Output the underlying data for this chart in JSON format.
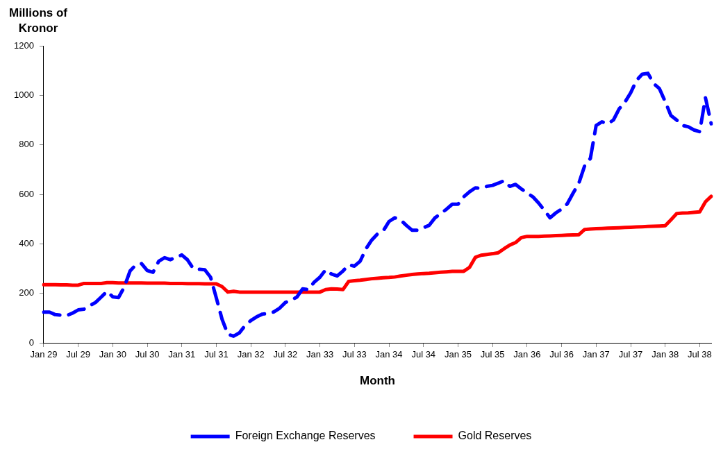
{
  "chart_data": {
    "type": "line",
    "ylabel": "Millions of Kronor",
    "xlabel": "Month",
    "categories": [
      "Jan 29",
      null,
      null,
      null,
      null,
      null,
      "Jul 29",
      null,
      null,
      null,
      null,
      null,
      "Jan 30",
      null,
      null,
      null,
      null,
      null,
      "Jul 30",
      null,
      null,
      null,
      null,
      null,
      "Jan 31",
      null,
      null,
      null,
      null,
      null,
      "Jul 31",
      null,
      null,
      null,
      null,
      null,
      "Jan 32",
      null,
      null,
      null,
      null,
      null,
      "Jul 32",
      null,
      null,
      null,
      null,
      null,
      "Jan 33",
      null,
      null,
      null,
      null,
      null,
      "Jul 33",
      null,
      null,
      null,
      null,
      null,
      "Jan 34",
      null,
      null,
      null,
      null,
      null,
      "Jul 34",
      null,
      null,
      null,
      null,
      null,
      "Jan 35",
      null,
      null,
      null,
      null,
      null,
      "Jul 35",
      null,
      null,
      null,
      null,
      null,
      "Jan 36",
      null,
      null,
      null,
      null,
      null,
      "Jul 36",
      null,
      null,
      null,
      null,
      null,
      "Jan 37",
      null,
      null,
      null,
      null,
      null,
      "Jul 37",
      null,
      null,
      null,
      null,
      null,
      "Jan 38",
      null,
      null,
      null,
      null,
      null,
      "Jul 38",
      null,
      null
    ],
    "series": [
      {
        "name": "Foreign Exchange Reserves",
        "color": "#0000ff",
        "line_style": "dashed",
        "values": [
          124,
          124,
          114,
          112,
          110,
          120,
          133,
          136,
          150,
          163,
          185,
          208,
          186,
          183,
          225,
          290,
          315,
          320,
          292,
          285,
          330,
          344,
          336,
          345,
          355,
          335,
          300,
          297,
          295,
          265,
          181,
          95,
          35,
          27,
          40,
          70,
          90,
          105,
          116,
          118,
          125,
          140,
          163,
          172,
          185,
          218,
          215,
          245,
          265,
          295,
          278,
          270,
          290,
          315,
          310,
          330,
          380,
          415,
          440,
          452,
          490,
          505,
          497,
          475,
          455,
          455,
          465,
          475,
          505,
          522,
          540,
          560,
          560,
          590,
          610,
          626,
          624,
          632,
          636,
          645,
          655,
          632,
          640,
          622,
          605,
          590,
          565,
          535,
          505,
          525,
          540,
          562,
          605,
          645,
          715,
          745,
          878,
          893,
          885,
          900,
          945,
          972,
          1010,
          1060,
          1085,
          1089,
          1047,
          1027,
          975,
          918,
          900,
          878,
          873,
          860,
          853,
          990,
          885
        ]
      },
      {
        "name": "Gold Reserves",
        "color": "#ff0000",
        "line_style": "solid",
        "values": [
          235,
          235,
          235,
          234,
          234,
          233,
          233,
          240,
          240,
          240,
          240,
          243,
          243,
          242,
          242,
          242,
          242,
          242,
          241,
          241,
          241,
          241,
          240,
          240,
          240,
          239,
          239,
          239,
          238,
          238,
          238,
          227,
          205,
          208,
          205,
          205,
          205,
          205,
          205,
          205,
          205,
          205,
          205,
          205,
          205,
          205,
          205,
          205,
          205,
          215,
          218,
          217,
          215,
          248,
          251,
          253,
          256,
          259,
          261,
          263,
          264,
          266,
          270,
          273,
          276,
          278,
          280,
          281,
          283,
          285,
          287,
          289,
          289,
          289,
          305,
          345,
          354,
          357,
          360,
          364,
          380,
          395,
          405,
          425,
          430,
          430,
          430,
          431,
          432,
          433,
          434,
          435,
          436,
          437,
          458,
          460,
          461,
          462,
          463,
          464,
          465,
          466,
          467,
          468,
          469,
          470,
          471,
          472,
          473,
          497,
          522,
          524,
          525,
          527,
          529,
          570,
          592
        ]
      }
    ],
    "ylim": [
      0,
      1200
    ],
    "yticks": [
      0,
      200,
      400,
      600,
      800,
      1000,
      1200
    ],
    "grid": false,
    "legend": "bottom",
    "marker": "none"
  }
}
